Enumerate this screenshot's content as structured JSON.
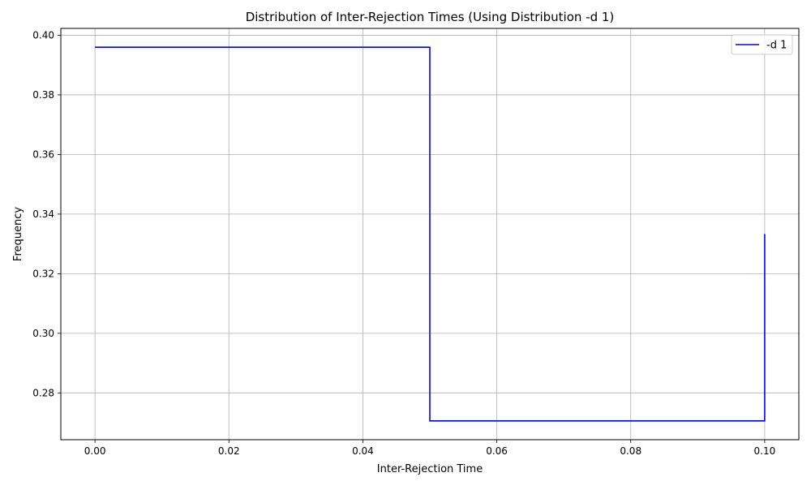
{
  "chart_data": {
    "type": "line",
    "drawstyle": "steps-post",
    "title": "Distribution of Inter-Rejection Times (Using Distribution -d 1)",
    "xlabel": "Inter-Rejection Time",
    "ylabel": "Frequency",
    "xlim": [
      -0.0051,
      0.1051
    ],
    "ylim": [
      0.2643,
      0.4023
    ],
    "x_ticks": [
      0.0,
      0.02,
      0.04,
      0.06,
      0.08,
      0.1
    ],
    "x_tick_labels": [
      "0.00",
      "0.02",
      "0.04",
      "0.06",
      "0.08",
      "0.10"
    ],
    "y_ticks": [
      0.28,
      0.3,
      0.32,
      0.34,
      0.36,
      0.38,
      0.4
    ],
    "y_tick_labels": [
      "0.28",
      "0.30",
      "0.32",
      "0.34",
      "0.36",
      "0.38",
      "0.40"
    ],
    "grid": true,
    "legend_position": "upper right",
    "series": [
      {
        "name": "-d 1",
        "color": "#0000ff",
        "x": [
          0.0,
          0.05,
          0.1
        ],
        "y": [
          0.396,
          0.2706,
          0.3333
        ]
      }
    ]
  }
}
